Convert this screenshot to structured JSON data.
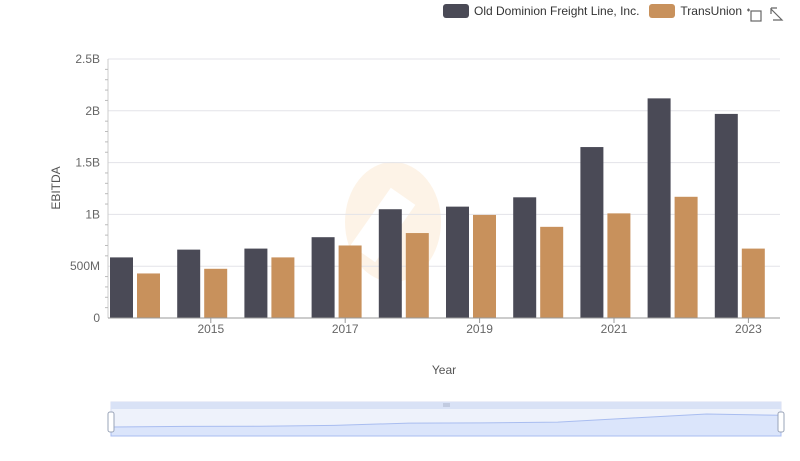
{
  "legend": [
    {
      "label": "Old Dominion Freight Line, Inc.",
      "color": "#4a4a56"
    },
    {
      "label": "TransUnion",
      "color": "#c8915c"
    }
  ],
  "toolbar": [
    {
      "name": "box-zoom-icon"
    },
    {
      "name": "reset-icon"
    }
  ],
  "chart_data": {
    "type": "bar",
    "xlabel": "Year",
    "ylabel": "EBITDA",
    "categories": [
      "2014",
      "2015",
      "2016",
      "2017",
      "2018",
      "2019",
      "2020",
      "2021",
      "2022",
      "2023"
    ],
    "x_tick_labels": [
      "2015",
      "2017",
      "2019",
      "2021",
      "2023"
    ],
    "y_ticks": [
      0,
      500000000,
      1000000000,
      1500000000,
      2000000000,
      2500000000
    ],
    "y_tick_labels": [
      "0",
      "500M",
      "1B",
      "1.5B",
      "2B",
      "2.5B"
    ],
    "ylim": [
      0,
      2500000000
    ],
    "grid": true,
    "legend_position": "top-right",
    "series": [
      {
        "name": "Old Dominion Freight Line, Inc.",
        "color": "#4a4a56",
        "values": [
          585000000,
          660000000,
          670000000,
          780000000,
          1050000000,
          1075000000,
          1165000000,
          1650000000,
          2120000000,
          1970000000
        ]
      },
      {
        "name": "TransUnion",
        "color": "#c8915c",
        "values": [
          430000000,
          475000000,
          585000000,
          700000000,
          820000000,
          995000000,
          880000000,
          1010000000,
          1170000000,
          670000000
        ]
      }
    ]
  }
}
